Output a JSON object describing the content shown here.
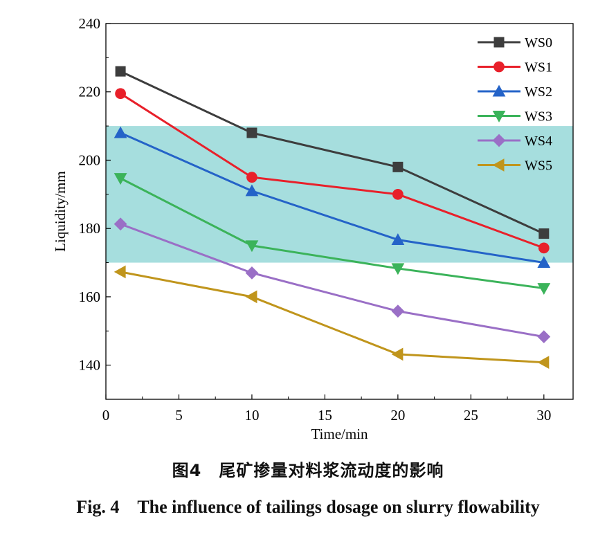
{
  "chart_data": {
    "type": "line",
    "title": "",
    "xlabel": "Time/min",
    "ylabel": "Liquidity/mm",
    "xlim": [
      0,
      32
    ],
    "ylim": [
      130,
      240
    ],
    "xticks": [
      0,
      5,
      10,
      15,
      20,
      25,
      30
    ],
    "yticks": [
      140,
      160,
      180,
      200,
      220,
      240
    ],
    "x": [
      1,
      10,
      20,
      30
    ],
    "shaded_band": {
      "y_range": [
        170,
        210
      ],
      "color": "#a6dede"
    },
    "legend_position": "top-right",
    "grid": false,
    "series": [
      {
        "name": "WS0",
        "color": "#3d3d3d",
        "marker": "square",
        "values": [
          226,
          208,
          198,
          178.5
        ]
      },
      {
        "name": "WS1",
        "color": "#e8202a",
        "marker": "circle",
        "values": [
          219.5,
          195,
          190,
          174.3
        ]
      },
      {
        "name": "WS2",
        "color": "#2463c8",
        "marker": "triangle-up",
        "values": [
          208,
          191,
          176.7,
          170
        ]
      },
      {
        "name": "WS3",
        "color": "#3bb35a",
        "marker": "triangle-down",
        "values": [
          194.7,
          175,
          168.3,
          162.5
        ]
      },
      {
        "name": "WS4",
        "color": "#9a6fc6",
        "marker": "diamond",
        "values": [
          181.3,
          167,
          155.8,
          148.3
        ]
      },
      {
        "name": "WS5",
        "color": "#c0951c",
        "marker": "triangle-left",
        "values": [
          167.3,
          160,
          143.2,
          140.8
        ]
      }
    ]
  },
  "caption": {
    "chinese_label": "图4　尾矿掺量对料浆流动度的影响",
    "english_label": "Fig. 4　The influence of tailings dosage on slurry flowability"
  }
}
